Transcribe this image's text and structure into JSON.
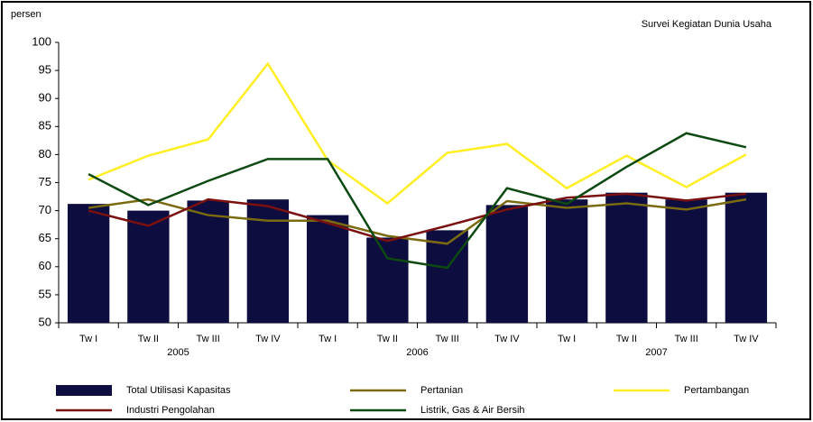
{
  "chart_data": {
    "type": "bar",
    "subtitle": "Survei Kegiatan Dunia Usaha",
    "y_label": "persen",
    "categories": [
      "Tw I",
      "Tw II",
      "Tw III",
      "Tw IV",
      "Tw I",
      "Tw II",
      "Tw III",
      "Tw IV",
      "Tw I",
      "Tw II",
      "Tw III",
      "Tw IV"
    ],
    "groups": [
      "2005",
      "2006",
      "2007"
    ],
    "ylim": [
      50,
      100
    ],
    "yticks": [
      50,
      55,
      60,
      65,
      70,
      75,
      80,
      85,
      90,
      95,
      100
    ],
    "series": [
      {
        "name": "Total Utilisasi Kapasitas",
        "type": "bar",
        "color": "#0d0d3f",
        "values": [
          71.2,
          70,
          71.8,
          72,
          69.2,
          65.2,
          66.5,
          71,
          72,
          73.2,
          72,
          73.2
        ]
      },
      {
        "name": "Pertanian",
        "type": "line",
        "color": "#7a6a10",
        "values": [
          70.5,
          72,
          69.2,
          68.2,
          68.2,
          65.5,
          64.1,
          71.7,
          70.5,
          71.3,
          70.2,
          72
        ]
      },
      {
        "name": "Pertambangan",
        "type": "line",
        "color": "#ffee22",
        "values": [
          75.5,
          79.8,
          82.7,
          96.2,
          79,
          71.3,
          80.3,
          81.9,
          74,
          79.8,
          74.2,
          80
        ]
      },
      {
        "name": "Industri Pengolahan",
        "type": "line",
        "color": "#7a1010",
        "values": [
          70,
          67.3,
          72,
          70.8,
          67.8,
          64.6,
          67.3,
          70.2,
          72.3,
          73,
          71.8,
          73
        ]
      },
      {
        "name": "Listrik, Gas & Air Bersih",
        "type": "line",
        "color": "#0d4a12",
        "values": [
          76.5,
          71,
          75.3,
          79.2,
          79.2,
          61.5,
          59.8,
          74,
          71.2,
          77.8,
          83.8,
          81.3
        ]
      }
    ]
  }
}
